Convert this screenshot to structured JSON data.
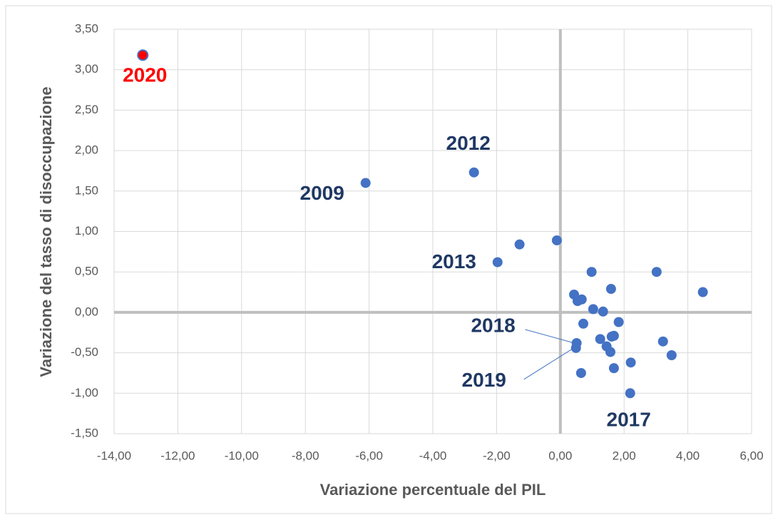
{
  "chart_data": {
    "type": "scatter",
    "xlabel": "Variazione percentuale del PIL",
    "ylabel": "Variazione del tasso di disoccupazione",
    "xlim": [
      -14,
      6
    ],
    "ylim": [
      -1.5,
      3.5
    ],
    "xticks": [
      {
        "value": -14,
        "label": "-14,00"
      },
      {
        "value": -12,
        "label": "-12,00"
      },
      {
        "value": -10,
        "label": "-10,00"
      },
      {
        "value": -8,
        "label": "-8,00"
      },
      {
        "value": -6,
        "label": "-6,00"
      },
      {
        "value": -4,
        "label": "-4,00"
      },
      {
        "value": -2,
        "label": "-2,00"
      },
      {
        "value": 0,
        "label": "0,00"
      },
      {
        "value": 2,
        "label": "2,00"
      },
      {
        "value": 4,
        "label": "4,00"
      },
      {
        "value": 6,
        "label": "6,00"
      }
    ],
    "yticks": [
      {
        "value": -1.5,
        "label": "-1,50"
      },
      {
        "value": -1,
        "label": "-1,00"
      },
      {
        "value": -0.5,
        "label": "-0,50"
      },
      {
        "value": 0,
        "label": "0,00"
      },
      {
        "value": 0.5,
        "label": "0,50"
      },
      {
        "value": 1,
        "label": "1,00"
      },
      {
        "value": 1.5,
        "label": "1,50"
      },
      {
        "value": 2,
        "label": "2,00"
      },
      {
        "value": 2.5,
        "label": "2,50"
      },
      {
        "value": 3,
        "label": "3,00"
      },
      {
        "value": 3.5,
        "label": "3,50"
      }
    ],
    "grid": true,
    "color": "#4472c4",
    "x": [
      -13.1,
      -6.11,
      -2.71,
      -1.28,
      -1.97,
      -0.11,
      0.98,
      3.02,
      4.47,
      1.59,
      0.43,
      0.67,
      0.54,
      1.03,
      1.34,
      1.83,
      0.72,
      1.25,
      1.61,
      1.68,
      1.45,
      1.57,
      3.22,
      3.49,
      0.51,
      0.49,
      2.21,
      1.68,
      0.65,
      2.19
    ],
    "values": [
      3.18,
      1.6,
      1.73,
      0.84,
      0.62,
      0.89,
      0.5,
      0.5,
      0.25,
      0.29,
      0.22,
      0.16,
      0.14,
      0.04,
      0.01,
      -0.12,
      -0.14,
      -0.33,
      -0.3,
      -0.29,
      -0.42,
      -0.49,
      -0.36,
      -0.53,
      -0.38,
      -0.44,
      -0.62,
      -0.69,
      -0.75,
      -1.0
    ],
    "point_colors": [
      "#ff0000",
      null,
      null,
      null,
      null,
      null,
      null,
      null,
      null,
      null,
      null,
      null,
      null,
      null,
      null,
      null,
      null,
      null,
      null,
      null,
      null,
      null,
      null,
      null,
      null,
      null,
      null,
      null,
      null,
      null
    ],
    "point_labels": [
      "2020",
      "2009",
      "2012",
      null,
      "2013",
      null,
      null,
      null,
      null,
      null,
      null,
      null,
      null,
      null,
      null,
      null,
      null,
      null,
      null,
      null,
      null,
      null,
      null,
      null,
      "2018",
      "2019",
      null,
      null,
      null,
      "2017"
    ],
    "label_colors": [
      "#ff0000",
      "#1f3864",
      "#1f3864",
      null,
      "#1f3864",
      null,
      null,
      null,
      null,
      null,
      null,
      null,
      null,
      null,
      null,
      null,
      null,
      null,
      null,
      null,
      null,
      null,
      null,
      null,
      "#1f3864",
      "#1f3864",
      null,
      null,
      null,
      "#1f3864"
    ]
  }
}
